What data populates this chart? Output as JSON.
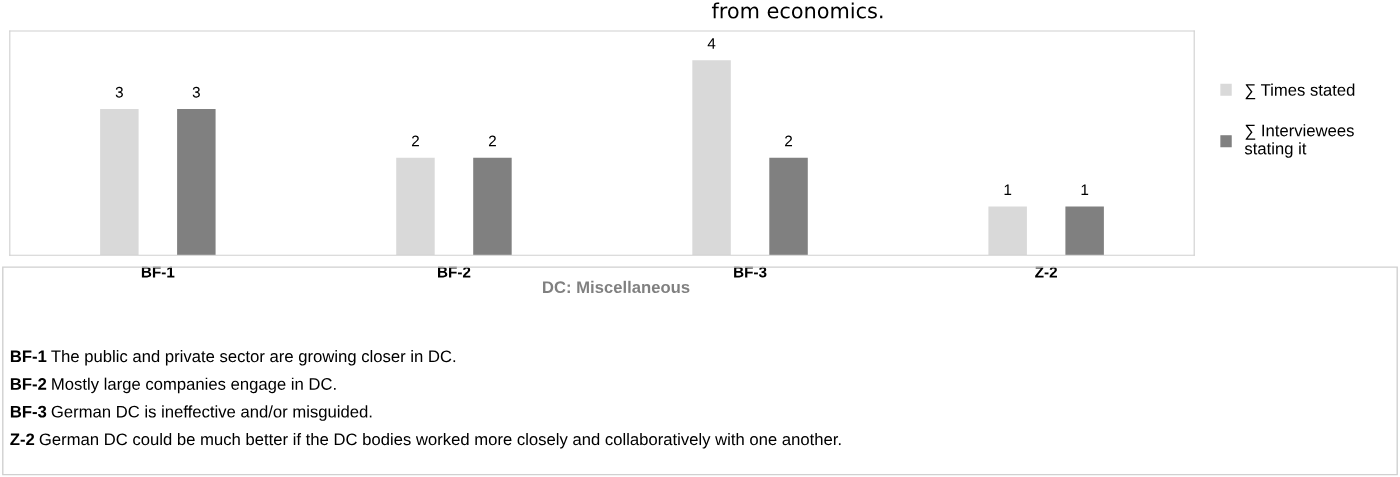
{
  "chart_data": {
    "type": "bar",
    "categories": [
      "BF-1",
      "BF-2",
      "BF-3",
      "Z-2"
    ],
    "series": [
      {
        "name": "∑ Times stated",
        "color": "#d9d9d9",
        "values": [
          3,
          2,
          4,
          1
        ]
      },
      {
        "name": "∑ Interviewees stating it",
        "color": "#808080",
        "values": [
          3,
          2,
          2,
          1
        ]
      }
    ],
    "data_labels": true,
    "legend": "right",
    "annotations": [
      "from economics.",
      "DC: Miscellaneous",
      "BF-1 The public and private sector are growing closer in DC.",
      "BF-2 Mostly large companies engage in DC.",
      "BF-3 German DC is ineffective and/or misguided.",
      "Z-2 German DC could be much better if the DC bodies worked more closely and collaboratively with one another."
    ]
  }
}
